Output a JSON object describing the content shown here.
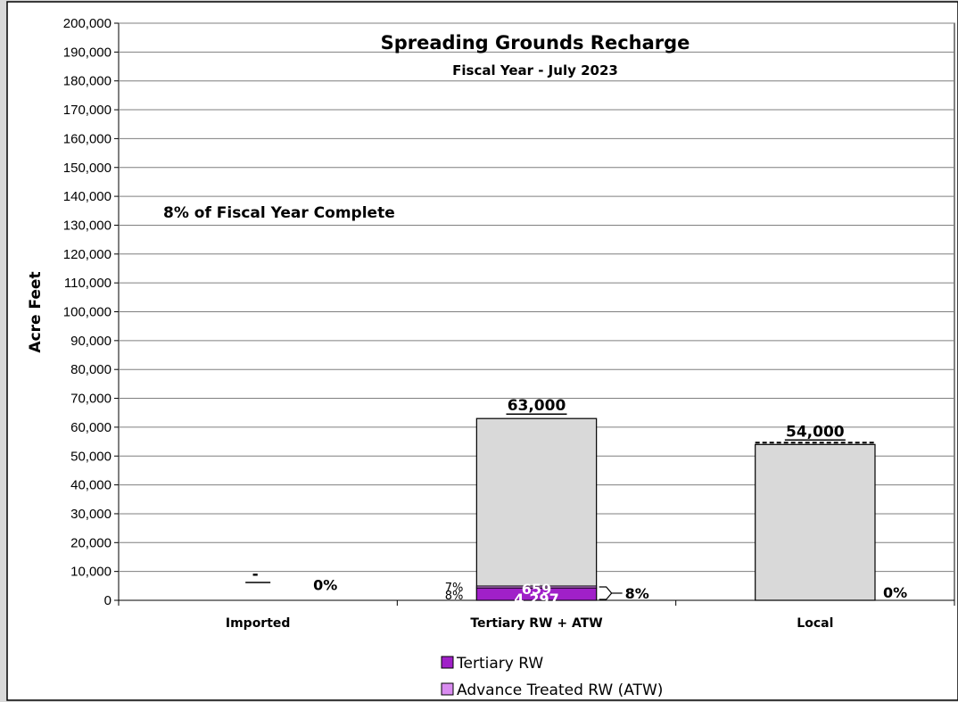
{
  "chart_data": {
    "type": "bar",
    "title": "Spreading Grounds Recharge",
    "subtitle": "Fiscal Year - July 2023",
    "ylabel": "Acre Feet",
    "xlabel": "",
    "annotation": "8% of Fiscal Year Complete",
    "ylim": [
      0,
      200000
    ],
    "ytick_step": 10000,
    "ytick_labels": [
      "0",
      "10,000",
      "20,000",
      "30,000",
      "40,000",
      "50,000",
      "60,000",
      "70,000",
      "80,000",
      "90,000",
      "100,000",
      "110,000",
      "120,000",
      "130,000",
      "140,000",
      "150,000",
      "160,000",
      "170,000",
      "180,000",
      "190,000",
      "200,000"
    ],
    "categories": [
      "Imported",
      "Tertiary RW + ATW",
      "Local"
    ],
    "targets": [
      0,
      63000,
      54000
    ],
    "target_labels": [
      "-",
      "63,000",
      "54,000"
    ],
    "series": [
      {
        "name": "Tertiary RW",
        "values": [
          0,
          4297,
          0
        ],
        "labels": [
          "-",
          "4,297",
          ""
        ],
        "color": "#a020c8"
      },
      {
        "name": "Advance Treated RW (ATW)",
        "values": [
          0,
          659,
          0
        ],
        "labels": [
          "",
          "659",
          ""
        ],
        "color": "#d98cf0"
      }
    ],
    "segment_percents": {
      "tertiary": "8%",
      "atw": "7%"
    },
    "percent_complete": [
      "0%",
      "8%",
      "0%"
    ],
    "grid": true,
    "legend_position": "bottom"
  }
}
